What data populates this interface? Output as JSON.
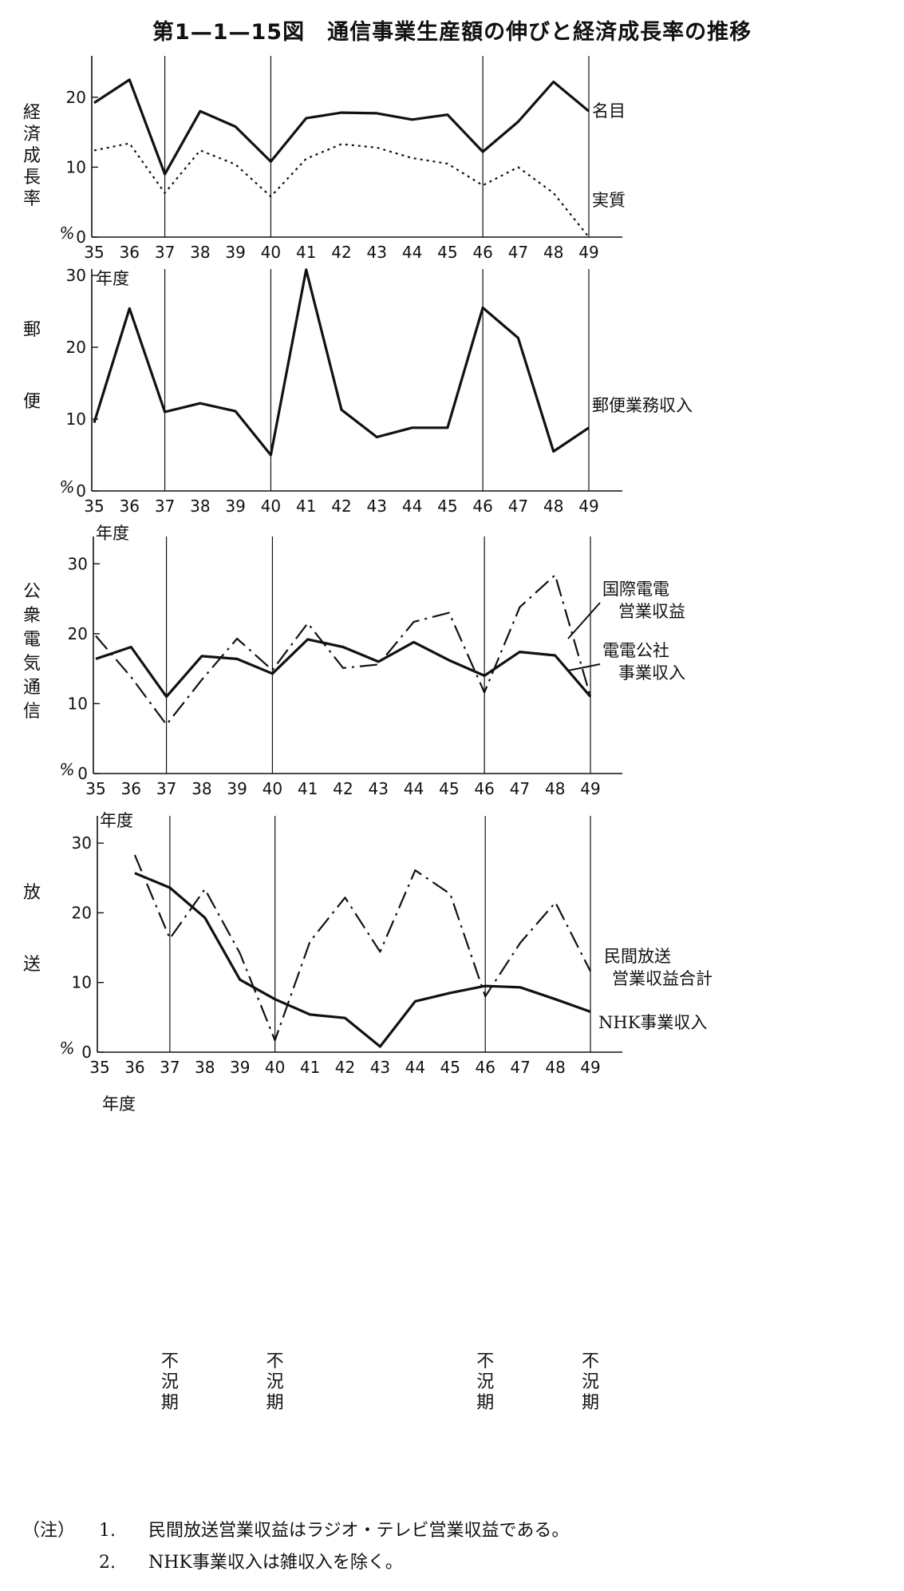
{
  "title": "第1—1—15図　通信事業生産額の伸びと経済成長率の推移",
  "x_unit": "年度",
  "y_unit": "%",
  "recession_label": "不況期",
  "notes": [
    {
      "lead": "（注）",
      "num": "1.",
      "text": "民間放送営業収益はラジオ・テレビ営業収益である。"
    },
    {
      "lead": "",
      "num": "2.",
      "text": "NHK事業収入は雑収入を除く。"
    }
  ],
  "chart_data": [
    {
      "type": "line",
      "ylabel": "経済成長率",
      "x": [
        35,
        36,
        37,
        38,
        39,
        40,
        41,
        42,
        43,
        44,
        45,
        46,
        47,
        48,
        49
      ],
      "ylim": [
        0,
        25
      ],
      "yticks": [
        0,
        10,
        20
      ],
      "recession_years": [
        37,
        40,
        46,
        49
      ],
      "series": [
        {
          "name": "名目",
          "style": "solid",
          "values": [
            19.2,
            22.5,
            9.0,
            18.0,
            15.8,
            10.8,
            17.0,
            17.8,
            17.7,
            16.8,
            17.5,
            12.2,
            16.5,
            22.2,
            18.0
          ]
        },
        {
          "name": "実質",
          "style": "dotted",
          "values": [
            12.4,
            13.4,
            6.3,
            12.4,
            10.4,
            5.8,
            11.2,
            13.3,
            12.8,
            11.3,
            10.5,
            7.4,
            10.0,
            6.3,
            0.0
          ]
        }
      ]
    },
    {
      "type": "line",
      "ylabel": "郵便",
      "x": [
        35,
        36,
        37,
        38,
        39,
        40,
        41,
        42,
        43,
        44,
        45,
        46,
        47,
        48,
        49
      ],
      "ylim": [
        0,
        30
      ],
      "yticks": [
        0,
        10,
        20,
        30
      ],
      "recession_years": [
        37,
        40,
        46,
        49
      ],
      "series": [
        {
          "name": "郵便業務収入",
          "style": "solid",
          "values": [
            9.5,
            25.4,
            11.0,
            12.2,
            11.1,
            5.0,
            30.8,
            11.3,
            7.5,
            8.8,
            8.8,
            25.5,
            21.3,
            5.5,
            8.8
          ]
        }
      ]
    },
    {
      "type": "line",
      "ylabel": "公衆電気通信",
      "x": [
        35,
        36,
        37,
        38,
        39,
        40,
        41,
        42,
        43,
        44,
        45,
        46,
        47,
        48,
        49
      ],
      "ylim": [
        0,
        33
      ],
      "yticks": [
        0,
        10,
        20,
        30
      ],
      "recession_years": [
        37,
        40,
        46,
        49
      ],
      "series": [
        {
          "name": "国際電電営業収益",
          "style": "dashdot",
          "values": [
            19.7,
            13.8,
            7.0,
            13.4,
            19.3,
            14.8,
            21.5,
            15.1,
            15.6,
            21.7,
            23.0,
            11.6,
            23.8,
            28.4,
            11.0
          ]
        },
        {
          "name": "電電公社事業収入",
          "style": "solid",
          "values": [
            16.4,
            18.1,
            11.0,
            16.8,
            16.4,
            14.3,
            19.2,
            18.1,
            16.0,
            18.8,
            16.2,
            14.0,
            17.4,
            16.9,
            11.0
          ]
        }
      ]
    },
    {
      "type": "line",
      "ylabel": "放送",
      "x": [
        35,
        36,
        37,
        38,
        39,
        40,
        41,
        42,
        43,
        44,
        45,
        46,
        47,
        48,
        49
      ],
      "ylim": [
        0,
        33
      ],
      "yticks": [
        0,
        10,
        20,
        30
      ],
      "recession_years": [
        37,
        40,
        46,
        49
      ],
      "series": [
        {
          "name": "民間放送営業収益合計",
          "style": "dashdot",
          "values": [
            null,
            28.3,
            16.3,
            23.4,
            14.2,
            1.7,
            15.9,
            22.2,
            14.4,
            26.1,
            22.7,
            8.0,
            15.7,
            21.5,
            11.6
          ]
        },
        {
          "name": "NHK事業収入",
          "style": "solid",
          "values": [
            null,
            25.7,
            23.6,
            19.3,
            10.4,
            7.6,
            5.4,
            4.9,
            0.8,
            7.3,
            8.5,
            9.5,
            9.3,
            7.6,
            5.8
          ]
        }
      ]
    }
  ]
}
